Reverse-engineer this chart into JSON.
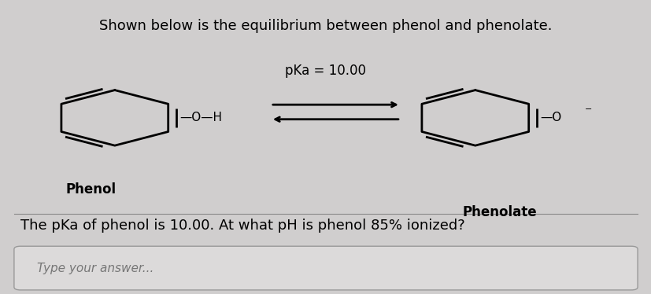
{
  "title": "Shown below is the equilibrium between phenol and phenolate.",
  "pka_label": "pKa = 10.00",
  "phenol_label": "Phenol",
  "phenolate_label": "Phenolate",
  "question": "The pKa of phenol is 10.00. At what pH is phenol 85% ionized?",
  "placeholder": "Type your answer...",
  "bg_color": "#d0cece",
  "text_color": "#000000",
  "title_fontsize": 13,
  "label_fontsize": 12,
  "question_fontsize": 13
}
